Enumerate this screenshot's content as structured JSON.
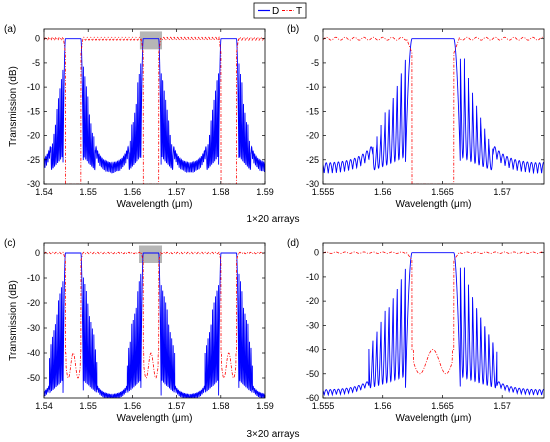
{
  "legend": {
    "items": [
      {
        "label": "D",
        "color": "#0000ff",
        "style": "solid"
      },
      {
        "label": "T",
        "color": "#ff0000",
        "style": "dashdot"
      }
    ],
    "placement": "top-center"
  },
  "captions": {
    "row1": "1×20 arrays",
    "row2": "3×20 arrays"
  },
  "colors": {
    "D": "#0000ff",
    "T": "#ff0000",
    "highlight": "#a9a9a9"
  },
  "chart_data": [
    {
      "type": "line",
      "panel_label": "(a)",
      "xlabel": "Wavelength (μm)",
      "ylabel": "Transmission (dB)",
      "xlim": [
        1.54,
        1.59
      ],
      "ylim": [
        -30,
        2
      ],
      "xticks": [
        1.54,
        1.55,
        1.56,
        1.57,
        1.58,
        1.59
      ],
      "xtick_labels": [
        "1.54",
        "1.55",
        "1.56",
        "1.57",
        "1.58",
        "1.59"
      ],
      "yticks": [
        -30,
        -25,
        -20,
        -15,
        -10,
        -5,
        0
      ],
      "ytick_labels": [
        "-30",
        "-25",
        "-20",
        "-15",
        "-10",
        "-5",
        "0"
      ],
      "highlight": {
        "x": [
          1.5617,
          1.5667
        ],
        "y": [
          -2.2,
          1.5
        ]
      },
      "channels": [
        1.5466,
        1.5642,
        1.5818
      ],
      "series": [
        {
          "name": "D",
          "passband_width": 0.0035,
          "floor": -26,
          "sidelobes": 8
        },
        {
          "name": "T",
          "notch_depth": -30
        }
      ]
    },
    {
      "type": "line",
      "panel_label": "(b)",
      "xlabel": "Wavelength (μm)",
      "ylabel": "",
      "xlim": [
        1.555,
        1.5735
      ],
      "ylim": [
        -30,
        2
      ],
      "xticks": [
        1.555,
        1.56,
        1.565,
        1.57
      ],
      "xtick_labels": [
        "1.555",
        "1.56",
        "1.565",
        "1.57"
      ],
      "yticks": [
        -30,
        -25,
        -20,
        -15,
        -10,
        -5,
        0
      ],
      "ytick_labels": [
        "-30",
        "-25",
        "-20",
        "-15",
        "-10",
        "-5",
        "0"
      ],
      "channels": [
        1.5642
      ],
      "series": [
        {
          "name": "D",
          "passband_width": 0.0035,
          "floor": -26,
          "sidelobes": 8
        },
        {
          "name": "T",
          "notch_depth": -30
        }
      ]
    },
    {
      "type": "line",
      "panel_label": "(c)",
      "xlabel": "Wavelength (μm)",
      "ylabel": "Transmission (dB)",
      "xlim": [
        1.54,
        1.59
      ],
      "ylim": [
        -58,
        4
      ],
      "xticks": [
        1.54,
        1.55,
        1.56,
        1.57,
        1.58,
        1.59
      ],
      "xtick_labels": [
        "1.54",
        "1.55",
        "1.56",
        "1.57",
        "1.58",
        "1.59"
      ],
      "yticks": [
        -50,
        -40,
        -30,
        -20,
        -10,
        0
      ],
      "ytick_labels": [
        "-50",
        "-40",
        "-30",
        "-20",
        "-10",
        "0"
      ],
      "highlight": {
        "x": [
          1.5615,
          1.5667
        ],
        "y": [
          -4,
          3
        ]
      },
      "channels": [
        1.5466,
        1.5642,
        1.5818
      ],
      "series": [
        {
          "name": "D",
          "passband_width": 0.0035,
          "floor": -57,
          "sidelobes": 9
        },
        {
          "name": "T",
          "notch_depth": -58,
          "inner_lobe": -45
        }
      ]
    },
    {
      "type": "line",
      "panel_label": "(d)",
      "xlabel": "Wavelength (μm)",
      "ylabel": "",
      "xlim": [
        1.555,
        1.5735
      ],
      "ylim": [
        -60,
        4
      ],
      "xticks": [
        1.555,
        1.56,
        1.565,
        1.57
      ],
      "xtick_labels": [
        "1.555",
        "1.56",
        "1.565",
        "1.57"
      ],
      "yticks": [
        -60,
        -50,
        -40,
        -30,
        -20,
        -10,
        0
      ],
      "ytick_labels": [
        "-60",
        "-50",
        "-40",
        "-30",
        "-20",
        "-10",
        "0"
      ],
      "channels": [
        1.5642
      ],
      "series": [
        {
          "name": "D",
          "passband_width": 0.0035,
          "floor": -57,
          "sidelobes": 9
        },
        {
          "name": "T",
          "notch_depth": -60,
          "inner_lobe": -45
        }
      ]
    }
  ]
}
